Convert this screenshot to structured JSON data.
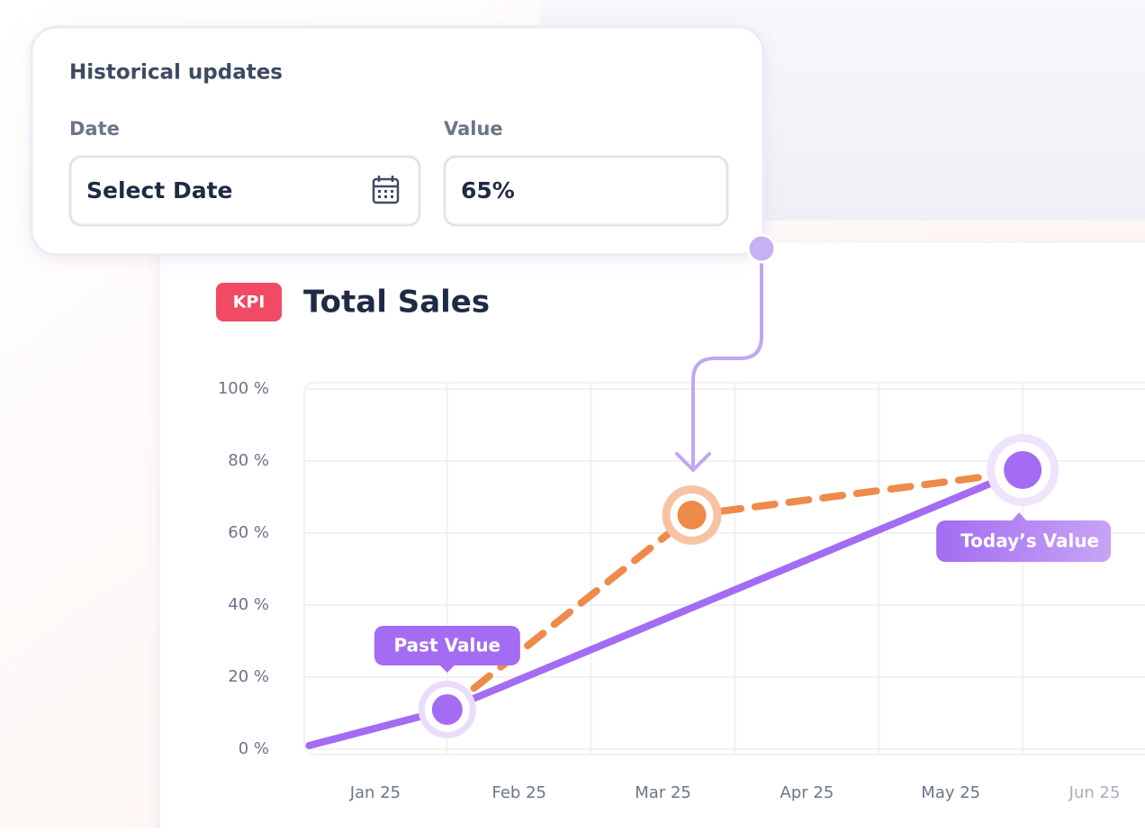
{
  "form": {
    "title": "Historical updates",
    "date_label": "Date",
    "date_placeholder": "Select Date",
    "value_label": "Value",
    "value": "65%"
  },
  "badge": "KPI",
  "chart_data": {
    "type": "line",
    "title": "Total Sales",
    "xlim": [
      0,
      5.85
    ],
    "xticks": [
      {
        "value": 0.5,
        "label": "Jan 25"
      },
      {
        "value": 1.5,
        "label": "Feb 25"
      },
      {
        "value": 2.5,
        "label": "Mar 25"
      },
      {
        "value": 3.5,
        "label": "Apr 25"
      },
      {
        "value": 4.5,
        "label": "May 25"
      },
      {
        "value": 5.5,
        "label": "Jun 25"
      }
    ],
    "xgrid": [
      1,
      2,
      3,
      4,
      5
    ],
    "ylim": [
      0,
      100
    ],
    "yticks": [
      {
        "value": 0,
        "label": "0 %"
      },
      {
        "value": 20,
        "label": "20 %"
      },
      {
        "value": 40,
        "label": "40 %"
      },
      {
        "value": 60,
        "label": "60 %"
      },
      {
        "value": 80,
        "label": "80 %"
      },
      {
        "value": 100,
        "label": "100 %"
      }
    ],
    "grid": true,
    "series": [
      {
        "color": "#a36cf2",
        "style": "solid",
        "x": [
          0.04,
          1,
          5
        ],
        "values": [
          1,
          11,
          77.5
        ]
      },
      {
        "color": "#ee8a4a",
        "style": "dashed",
        "x": [
          1,
          2.7,
          5
        ],
        "values": [
          11,
          65,
          77
        ]
      }
    ],
    "annotations": [
      "Past Value",
      "Today’s Value"
    ]
  }
}
